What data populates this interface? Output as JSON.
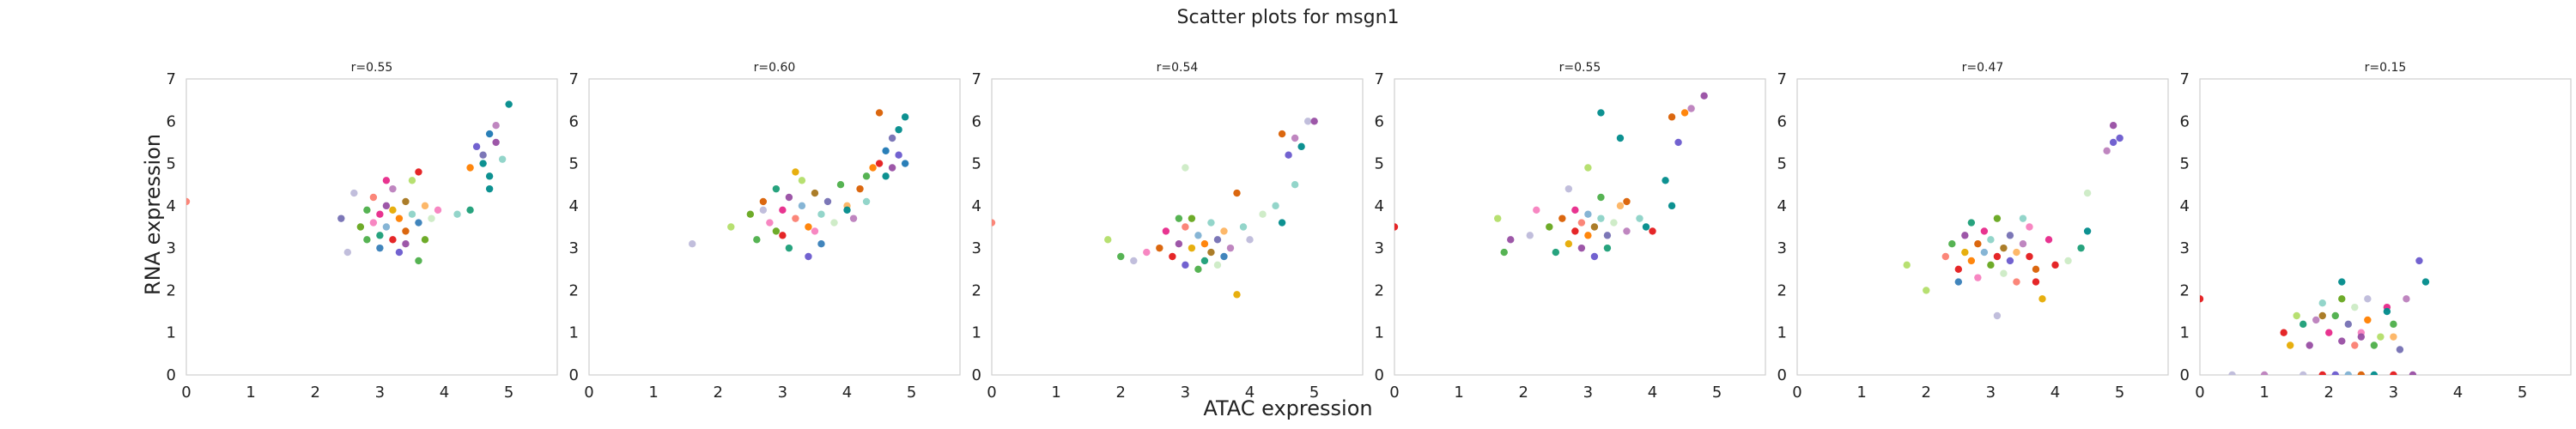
{
  "figure": {
    "title": "Scatter plots for msgn1",
    "xlabel": "ATAC expression",
    "ylabel": "RNA expression"
  },
  "palette": [
    "#1b9e77",
    "#d95f02",
    "#7570b3",
    "#e7298a",
    "#66a61e",
    "#e6ab02",
    "#a6761d",
    "#e41a1c",
    "#377eb8",
    "#4daf4a",
    "#984ea3",
    "#ff7f00",
    "#f781bf",
    "#8dd3c7",
    "#bebada",
    "#fb8072",
    "#80b1d3",
    "#fdb462",
    "#b3de69",
    "#bc80bd",
    "#ccebc5",
    "#008b8b",
    "#6a5acd",
    "#1f78b4"
  ],
  "chart_data": [
    {
      "type": "scatter",
      "title": "r=0.55",
      "xlim": [
        0,
        5.75
      ],
      "ylim": [
        0,
        7
      ],
      "xticks": [
        0,
        1,
        2,
        3,
        4,
        5
      ],
      "yticks": [
        0,
        1,
        2,
        3,
        4,
        5,
        6,
        7
      ],
      "grid": false,
      "points": [
        [
          0.0,
          4.1,
          15
        ],
        [
          2.4,
          3.7,
          2
        ],
        [
          2.5,
          2.9,
          14
        ],
        [
          2.7,
          3.5,
          4
        ],
        [
          2.8,
          3.9,
          9
        ],
        [
          2.9,
          3.6,
          12
        ],
        [
          2.9,
          4.2,
          15
        ],
        [
          3.0,
          3.3,
          0
        ],
        [
          3.0,
          3.8,
          3
        ],
        [
          3.1,
          4.0,
          10
        ],
        [
          3.1,
          3.5,
          16
        ],
        [
          3.2,
          3.9,
          5
        ],
        [
          3.2,
          3.2,
          7
        ],
        [
          3.2,
          4.4,
          19
        ],
        [
          3.3,
          3.7,
          11
        ],
        [
          3.3,
          2.9,
          22
        ],
        [
          3.4,
          4.1,
          6
        ],
        [
          3.4,
          3.4,
          1
        ],
        [
          3.5,
          3.8,
          13
        ],
        [
          3.5,
          4.6,
          18
        ],
        [
          3.6,
          3.6,
          8
        ],
        [
          3.6,
          2.7,
          9
        ],
        [
          3.7,
          3.2,
          4
        ],
        [
          3.7,
          4.0,
          17
        ],
        [
          3.8,
          3.7,
          20
        ],
        [
          3.9,
          3.9,
          12
        ],
        [
          4.2,
          3.8,
          13
        ],
        [
          4.4,
          3.9,
          0
        ],
        [
          4.6,
          5.0,
          21
        ],
        [
          4.6,
          5.2,
          2
        ],
        [
          4.7,
          5.7,
          23
        ],
        [
          4.7,
          4.7,
          21
        ],
        [
          4.8,
          5.5,
          10
        ],
        [
          4.8,
          5.9,
          19
        ],
        [
          4.9,
          5.1,
          13
        ],
        [
          5.0,
          6.4,
          21
        ],
        [
          4.5,
          5.4,
          22
        ],
        [
          4.4,
          4.9,
          11
        ],
        [
          4.7,
          4.4,
          21
        ],
        [
          2.6,
          4.3,
          14
        ],
        [
          3.0,
          3.0,
          8
        ],
        [
          3.4,
          3.1,
          10
        ],
        [
          3.1,
          4.6,
          3
        ],
        [
          2.8,
          3.2,
          9
        ],
        [
          3.6,
          4.8,
          7
        ]
      ]
    },
    {
      "type": "scatter",
      "title": "r=0.60",
      "xlim": [
        0,
        5.75
      ],
      "ylim": [
        0,
        7
      ],
      "xticks": [
        0,
        1,
        2,
        3,
        4,
        5
      ],
      "yticks": [
        0,
        1,
        2,
        3,
        4,
        5,
        6,
        7
      ],
      "grid": false,
      "points": [
        [
          1.6,
          3.1,
          14
        ],
        [
          2.2,
          3.5,
          18
        ],
        [
          2.5,
          3.8,
          4
        ],
        [
          2.6,
          3.2,
          9
        ],
        [
          2.7,
          4.1,
          1
        ],
        [
          2.8,
          3.6,
          12
        ],
        [
          2.9,
          4.4,
          0
        ],
        [
          3.0,
          3.9,
          3
        ],
        [
          3.0,
          3.3,
          7
        ],
        [
          3.1,
          4.2,
          10
        ],
        [
          3.2,
          3.7,
          15
        ],
        [
          3.2,
          4.8,
          5
        ],
        [
          3.3,
          4.0,
          16
        ],
        [
          3.4,
          3.5,
          11
        ],
        [
          3.4,
          2.8,
          22
        ],
        [
          3.5,
          4.3,
          6
        ],
        [
          3.6,
          3.8,
          13
        ],
        [
          3.7,
          4.1,
          2
        ],
        [
          3.8,
          3.6,
          20
        ],
        [
          3.9,
          4.5,
          9
        ],
        [
          4.0,
          4.0,
          17
        ],
        [
          4.1,
          3.7,
          19
        ],
        [
          4.2,
          4.4,
          1
        ],
        [
          4.3,
          4.1,
          13
        ],
        [
          4.4,
          4.9,
          11
        ],
        [
          4.5,
          6.2,
          1
        ],
        [
          4.6,
          5.3,
          23
        ],
        [
          4.6,
          4.7,
          21
        ],
        [
          4.7,
          5.6,
          2
        ],
        [
          4.7,
          4.9,
          10
        ],
        [
          4.8,
          5.8,
          21
        ],
        [
          4.8,
          5.2,
          22
        ],
        [
          4.9,
          6.1,
          21
        ],
        [
          4.9,
          5.0,
          23
        ],
        [
          4.5,
          5.0,
          7
        ],
        [
          4.3,
          4.7,
          9
        ],
        [
          2.9,
          3.4,
          4
        ],
        [
          3.6,
          3.1,
          8
        ],
        [
          3.1,
          3.0,
          0
        ],
        [
          3.3,
          4.6,
          18
        ],
        [
          2.7,
          3.9,
          14
        ],
        [
          4.0,
          3.9,
          21
        ],
        [
          3.5,
          3.4,
          12
        ]
      ]
    },
    {
      "type": "scatter",
      "title": "r=0.54",
      "xlim": [
        0,
        5.75
      ],
      "ylim": [
        0,
        7
      ],
      "xticks": [
        0,
        1,
        2,
        3,
        4,
        5
      ],
      "yticks": [
        0,
        1,
        2,
        3,
        4,
        5,
        6,
        7
      ],
      "grid": false,
      "points": [
        [
          0.0,
          3.6,
          15
        ],
        [
          1.8,
          3.2,
          18
        ],
        [
          2.0,
          2.8,
          9
        ],
        [
          2.2,
          2.7,
          14
        ],
        [
          2.4,
          2.9,
          12
        ],
        [
          2.6,
          3.0,
          1
        ],
        [
          2.7,
          3.4,
          3
        ],
        [
          2.8,
          2.8,
          7
        ],
        [
          2.9,
          3.1,
          10
        ],
        [
          3.0,
          3.5,
          15
        ],
        [
          3.0,
          2.6,
          22
        ],
        [
          3.1,
          3.0,
          5
        ],
        [
          3.2,
          3.3,
          16
        ],
        [
          3.2,
          2.5,
          9
        ],
        [
          3.3,
          3.1,
          11
        ],
        [
          3.4,
          2.9,
          6
        ],
        [
          3.4,
          3.6,
          13
        ],
        [
          3.5,
          3.2,
          2
        ],
        [
          3.5,
          2.6,
          20
        ],
        [
          3.6,
          3.4,
          17
        ],
        [
          3.7,
          3.0,
          19
        ],
        [
          3.8,
          4.3,
          1
        ],
        [
          3.9,
          3.5,
          13
        ],
        [
          3.8,
          1.9,
          5
        ],
        [
          4.0,
          3.2,
          14
        ],
        [
          4.2,
          3.8,
          20
        ],
        [
          4.4,
          4.0,
          13
        ],
        [
          4.5,
          3.6,
          21
        ],
        [
          4.5,
          5.7,
          1
        ],
        [
          4.6,
          5.2,
          22
        ],
        [
          4.7,
          5.6,
          19
        ],
        [
          4.7,
          4.5,
          13
        ],
        [
          4.8,
          5.4,
          21
        ],
        [
          4.9,
          6.0,
          14
        ],
        [
          5.0,
          6.0,
          10
        ],
        [
          3.0,
          4.9,
          20
        ],
        [
          2.9,
          3.7,
          9
        ],
        [
          3.3,
          2.7,
          0
        ],
        [
          3.6,
          2.8,
          8
        ],
        [
          3.1,
          3.7,
          4
        ]
      ]
    },
    {
      "type": "scatter",
      "title": "r=0.55",
      "xlim": [
        0,
        5.75
      ],
      "ylim": [
        0,
        7
      ],
      "xticks": [
        0,
        1,
        2,
        3,
        4,
        5
      ],
      "yticks": [
        0,
        1,
        2,
        3,
        4,
        5,
        6,
        7
      ],
      "grid": false,
      "points": [
        [
          0.0,
          3.5,
          7
        ],
        [
          1.6,
          3.7,
          18
        ],
        [
          1.8,
          3.2,
          10
        ],
        [
          1.7,
          2.9,
          9
        ],
        [
          2.1,
          3.3,
          14
        ],
        [
          2.2,
          3.9,
          12
        ],
        [
          2.4,
          3.5,
          4
        ],
        [
          2.5,
          2.9,
          0
        ],
        [
          2.6,
          3.7,
          1
        ],
        [
          2.7,
          3.1,
          5
        ],
        [
          2.8,
          3.9,
          3
        ],
        [
          2.8,
          3.4,
          7
        ],
        [
          2.9,
          3.6,
          15
        ],
        [
          2.9,
          3.0,
          10
        ],
        [
          3.0,
          3.8,
          16
        ],
        [
          3.0,
          3.3,
          11
        ],
        [
          3.1,
          3.5,
          6
        ],
        [
          3.1,
          2.8,
          22
        ],
        [
          3.2,
          3.7,
          13
        ],
        [
          3.2,
          4.2,
          9
        ],
        [
          3.3,
          3.3,
          2
        ],
        [
          3.4,
          3.6,
          20
        ],
        [
          3.5,
          4.0,
          17
        ],
        [
          3.6,
          3.4,
          19
        ],
        [
          3.6,
          4.1,
          1
        ],
        [
          3.8,
          3.7,
          13
        ],
        [
          3.9,
          3.5,
          21
        ],
        [
          4.0,
          3.4,
          7
        ],
        [
          3.0,
          4.9,
          18
        ],
        [
          3.5,
          5.6,
          21
        ],
        [
          3.2,
          6.2,
          21
        ],
        [
          4.2,
          4.6,
          21
        ],
        [
          4.3,
          6.1,
          1
        ],
        [
          4.4,
          5.5,
          22
        ],
        [
          4.5,
          6.2,
          11
        ],
        [
          4.6,
          6.3,
          19
        ],
        [
          4.8,
          6.6,
          10
        ],
        [
          4.3,
          4.0,
          21
        ],
        [
          2.7,
          4.4,
          14
        ],
        [
          3.3,
          3.0,
          0
        ]
      ]
    },
    {
      "type": "scatter",
      "title": "r=0.47",
      "xlim": [
        0,
        5.75
      ],
      "ylim": [
        0,
        7
      ],
      "xticks": [
        0,
        1,
        2,
        3,
        4,
        5
      ],
      "yticks": [
        0,
        1,
        2,
        3,
        4,
        5,
        6,
        7
      ],
      "grid": false,
      "points": [
        [
          1.7,
          2.6,
          18
        ],
        [
          2.0,
          2.0,
          18
        ],
        [
          2.3,
          2.8,
          15
        ],
        [
          2.4,
          3.1,
          9
        ],
        [
          2.5,
          2.5,
          7
        ],
        [
          2.6,
          2.9,
          5
        ],
        [
          2.6,
          3.3,
          10
        ],
        [
          2.7,
          2.7,
          11
        ],
        [
          2.8,
          3.1,
          1
        ],
        [
          2.8,
          2.3,
          12
        ],
        [
          2.9,
          2.9,
          16
        ],
        [
          2.9,
          3.4,
          3
        ],
        [
          3.0,
          2.6,
          4
        ],
        [
          3.0,
          3.2,
          13
        ],
        [
          3.1,
          2.8,
          7
        ],
        [
          3.1,
          1.4,
          14
        ],
        [
          3.2,
          3.0,
          6
        ],
        [
          3.2,
          2.4,
          20
        ],
        [
          3.3,
          3.3,
          2
        ],
        [
          3.3,
          2.7,
          22
        ],
        [
          3.4,
          2.9,
          17
        ],
        [
          3.4,
          2.2,
          15
        ],
        [
          3.5,
          3.1,
          19
        ],
        [
          3.6,
          2.8,
          7
        ],
        [
          3.7,
          2.5,
          1
        ],
        [
          3.8,
          1.8,
          5
        ],
        [
          4.0,
          2.6,
          7
        ],
        [
          4.2,
          2.7,
          20
        ],
        [
          4.4,
          3.0,
          0
        ],
        [
          4.5,
          3.4,
          21
        ],
        [
          4.5,
          4.3,
          20
        ],
        [
          4.9,
          5.9,
          10
        ],
        [
          4.9,
          5.5,
          22
        ],
        [
          5.0,
          5.6,
          22
        ],
        [
          4.8,
          5.3,
          19
        ],
        [
          3.6,
          3.5,
          12
        ],
        [
          2.7,
          3.6,
          0
        ],
        [
          3.1,
          3.7,
          4
        ],
        [
          3.5,
          3.7,
          13
        ],
        [
          3.9,
          3.2,
          3
        ],
        [
          3.7,
          2.2,
          7
        ],
        [
          2.5,
          2.2,
          8
        ]
      ]
    },
    {
      "type": "scatter",
      "title": "r=0.15",
      "xlim": [
        0,
        5.75
      ],
      "ylim": [
        0,
        7
      ],
      "xticks": [
        0,
        1,
        2,
        3,
        4,
        5
      ],
      "yticks": [
        0,
        1,
        2,
        3,
        4,
        5,
        6,
        7
      ],
      "grid": false,
      "points": [
        [
          0.0,
          1.8,
          7
        ],
        [
          0.5,
          0.0,
          14
        ],
        [
          1.0,
          0.0,
          19
        ],
        [
          1.3,
          1.0,
          7
        ],
        [
          1.4,
          0.7,
          5
        ],
        [
          1.5,
          1.4,
          18
        ],
        [
          1.6,
          0.0,
          14
        ],
        [
          1.7,
          0.7,
          10
        ],
        [
          1.8,
          1.3,
          19
        ],
        [
          1.9,
          1.7,
          13
        ],
        [
          1.9,
          0.0,
          7
        ],
        [
          2.0,
          1.0,
          3
        ],
        [
          2.1,
          1.4,
          9
        ],
        [
          2.1,
          0.0,
          22
        ],
        [
          2.2,
          1.8,
          4
        ],
        [
          2.2,
          0.8,
          10
        ],
        [
          2.3,
          1.2,
          2
        ],
        [
          2.3,
          0.0,
          16
        ],
        [
          2.4,
          1.6,
          20
        ],
        [
          2.4,
          0.7,
          15
        ],
        [
          2.5,
          1.0,
          12
        ],
        [
          2.5,
          0.0,
          1
        ],
        [
          2.6,
          1.3,
          11
        ],
        [
          2.7,
          0.7,
          9
        ],
        [
          2.7,
          0.0,
          21
        ],
        [
          2.8,
          0.9,
          18
        ],
        [
          2.9,
          1.6,
          3
        ],
        [
          3.0,
          1.2,
          9
        ],
        [
          3.0,
          0.0,
          7
        ],
        [
          3.1,
          0.6,
          2
        ],
        [
          3.2,
          1.8,
          19
        ],
        [
          3.3,
          0.0,
          10
        ],
        [
          3.4,
          2.7,
          22
        ],
        [
          3.5,
          2.2,
          21
        ],
        [
          2.9,
          1.5,
          21
        ],
        [
          2.2,
          2.2,
          21
        ],
        [
          1.6,
          1.2,
          0
        ],
        [
          2.5,
          0.9,
          10
        ],
        [
          1.9,
          1.4,
          6
        ],
        [
          2.6,
          1.8,
          14
        ],
        [
          3.0,
          0.9,
          17
        ]
      ]
    }
  ]
}
